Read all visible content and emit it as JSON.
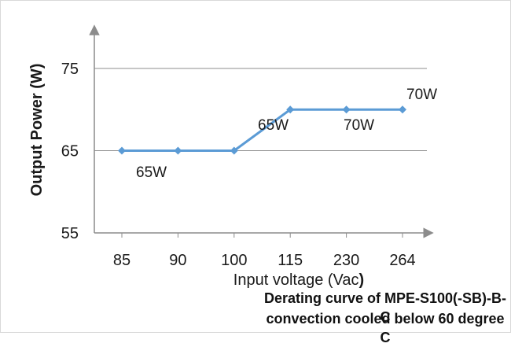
{
  "chart_data": {
    "type": "line",
    "title": "",
    "xlabel": "Input voltage (Vac",
    "xlabel_suffix": ")",
    "ylabel": "Output Power (W)",
    "categories": [
      "85",
      "90",
      "100",
      "115",
      "230",
      "264"
    ],
    "values": [
      65,
      65,
      65,
      70,
      70,
      70
    ],
    "ylim": [
      55,
      80
    ],
    "yticks": [
      55,
      65,
      75
    ],
    "grid": true,
    "series_color": "#5b9bd5",
    "axis_color": "#8c8c8c",
    "grid_color": "#8c8c8c",
    "annotations": [
      "65W",
      "65W",
      "70W",
      "70W"
    ]
  },
  "caption": {
    "line1": "Derating curve of MPE-S100(-SB)-B-C",
    "line2": "convection cooled below 60 degree C"
  }
}
